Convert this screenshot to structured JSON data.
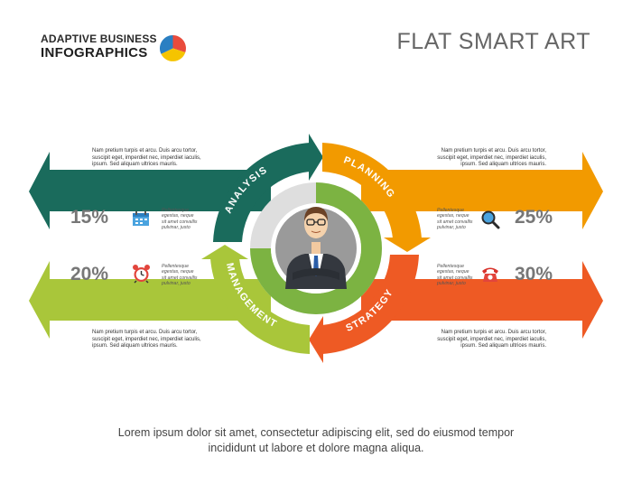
{
  "brand": {
    "line1": "ADAPTIVE BUSINESS",
    "line2": "INFOGRAPHICS"
  },
  "title": "FLAT SMART ART",
  "colors": {
    "analysis": "#1a6b5c",
    "planning": "#f29a00",
    "strategy": "#ee5a24",
    "management": "#a9c63a",
    "inner_green": "#7cb342",
    "stat_text": "#777777"
  },
  "segments": [
    {
      "label": "ANALYSIS"
    },
    {
      "label": "PLANNING"
    },
    {
      "label": "STRATEGY"
    },
    {
      "label": "MANAGEMENT"
    }
  ],
  "paragraphs": {
    "top_left": {
      "line1": "Nam pretium turpis et arcu. Duis arcu tortor,",
      "line2": "suscipit eget, imperdiet nec, imperdiet iaculis,",
      "line3": "ipsum. Sed aliquam ultrices mauris."
    },
    "top_right": {
      "line1": "Nam pretium turpis et arcu. Duis arcu tortor,",
      "line2": "suscipit eget, imperdiet nec, imperdiet iaculis,",
      "line3": "ipsum. Sed aliquam ultrices mauris."
    },
    "bottom_left": {
      "line1": "Nam pretium turpis et arcu. Duis arcu tortor,",
      "line2": "suscipit eget, imperdiet nec, imperdiet iaculis,",
      "line3": "ipsum. Sed aliquam ultrices mauris."
    },
    "bottom_right": {
      "line1": "Nam pretium turpis et arcu. Duis arcu tortor,",
      "line2": "suscipit eget, imperdiet nec, imperdiet iaculis,",
      "line3": "ipsum. Sed aliquam ultrices mauris."
    }
  },
  "stats": [
    {
      "value": "15%",
      "icon": "calendar-icon",
      "line1": "Pellentesque",
      "line2": "egestas, neque",
      "line3": "sit amet convallis",
      "line4": "pulvinar, justo"
    },
    {
      "value": "25%",
      "icon": "magnifier-icon",
      "line1": "Pellentesque",
      "line2": "egestas, neque",
      "line3": "sit amet convallis",
      "line4": "pulvinar, justo"
    },
    {
      "value": "20%",
      "icon": "alarm-clock-icon",
      "line1": "Pellentesque",
      "line2": "egestas, neque",
      "line3": "sit amet convallis",
      "line4": "pulvinar, justo"
    },
    {
      "value": "30%",
      "icon": "telephone-icon",
      "line1": "Pellentesque",
      "line2": "egestas, neque",
      "line3": "sit amet convallis",
      "line4": "pulvinar, justo"
    }
  ],
  "footer": {
    "line1": "Lorem ipsum dolor sit amet, consectetur adipiscing elit, sed do eiusmod tempor",
    "line2": "incididunt ut labore et dolore magna aliqua."
  }
}
